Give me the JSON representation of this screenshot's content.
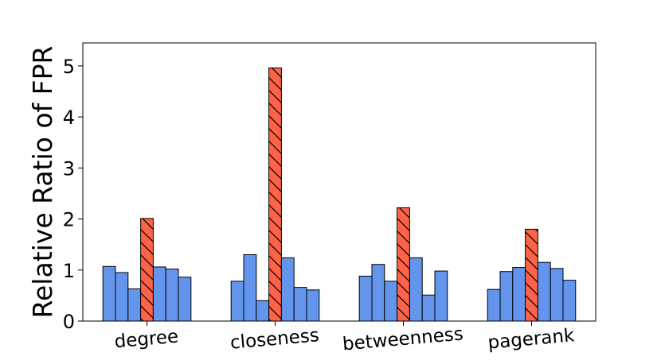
{
  "chart_data": {
    "type": "bar",
    "ylabel": "Relative Ratio of FPR",
    "xlabel": "",
    "ylim": [
      0,
      5.45
    ],
    "yticks": [
      "0",
      "1",
      "2",
      "3",
      "4",
      "5"
    ],
    "categories": [
      "degree",
      "closeness",
      "betweenness",
      "pagerank"
    ],
    "bars_per_group": 7,
    "highlight_index": 3,
    "colors": {
      "normal": "#6495ED",
      "highlight": "#FF6347",
      "edge": "#000000"
    },
    "values": [
      [
        1.07,
        0.95,
        0.63,
        2.01,
        1.06,
        1.02,
        0.86
      ],
      [
        0.78,
        1.3,
        0.4,
        4.96,
        1.24,
        0.66,
        0.61
      ],
      [
        0.88,
        1.11,
        0.78,
        2.22,
        1.24,
        0.51,
        0.98
      ],
      [
        0.62,
        0.97,
        1.05,
        1.8,
        1.15,
        1.03,
        0.8
      ]
    ]
  }
}
